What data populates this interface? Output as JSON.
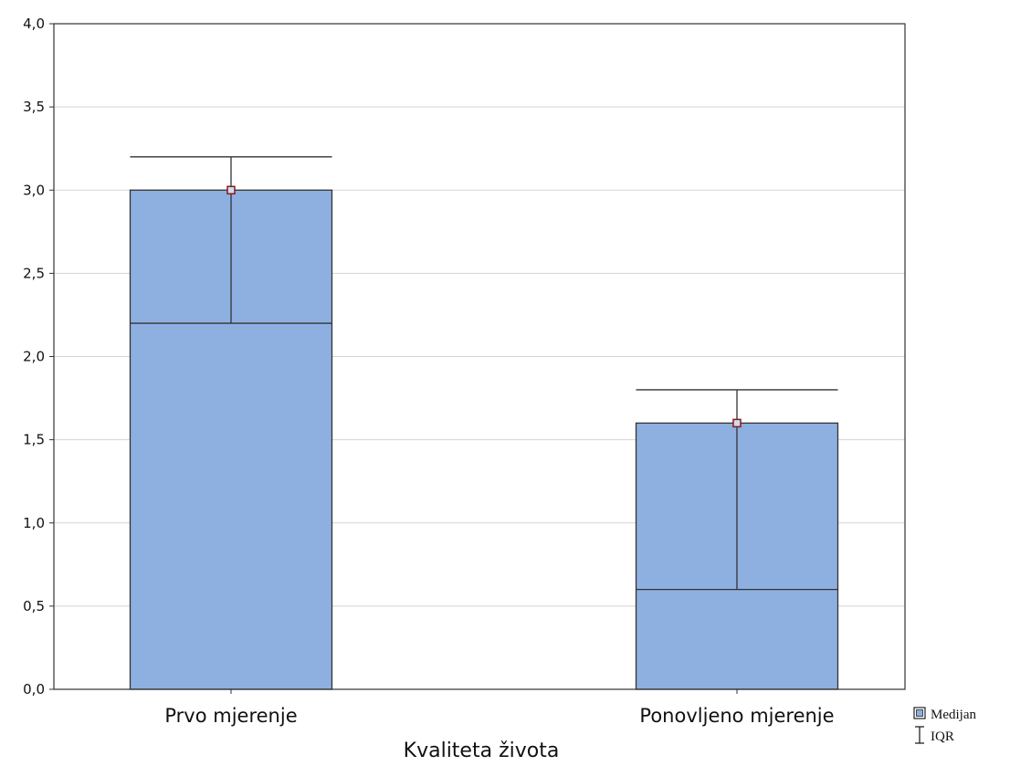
{
  "chart_data": {
    "type": "bar",
    "xlabel": "Kvaliteta života",
    "ylabel": "",
    "ylim": [
      0,
      4
    ],
    "yticks": [
      0,
      0.5,
      1,
      1.5,
      2,
      2.5,
      3,
      3.5,
      4
    ],
    "ytick_labels": [
      "0,0",
      "0,5",
      "1,0",
      "1,5",
      "2,0",
      "2,5",
      "3,0",
      "3,5",
      "4,0"
    ],
    "grid": true,
    "legend_position": "bottom-right",
    "categories": [
      "Prvo mjerenje",
      "Ponovljeno mjerenje"
    ],
    "series": [
      {
        "name": "Medijan",
        "values": [
          3.0,
          1.6
        ]
      },
      {
        "name": "IQR",
        "values": [
          [
            2.2,
            3.2
          ],
          [
            0.6,
            1.8
          ]
        ]
      }
    ],
    "colors": {
      "bar_fill": "#8db0e0",
      "bar_stroke": "#333333",
      "median_marker": "#8b1a1a",
      "grid": "#d4d4d4",
      "axis": "#333333"
    }
  }
}
